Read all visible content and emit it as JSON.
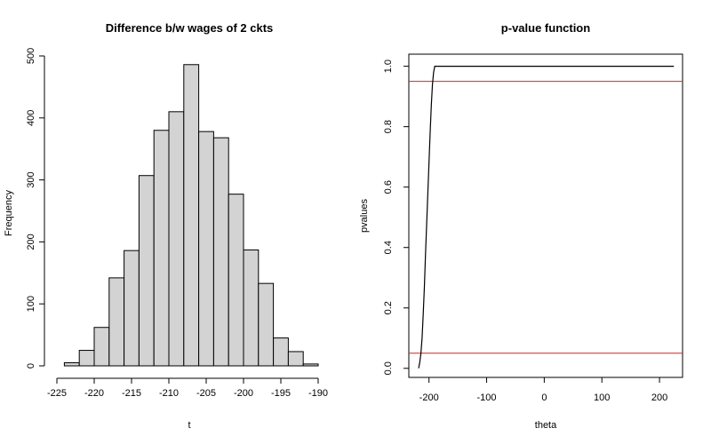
{
  "chart_data": [
    {
      "type": "bar",
      "title": "Difference b/w wages of 2 ckts",
      "xlabel": "t",
      "ylabel": "Frequency",
      "bin_edges": [
        -224,
        -222,
        -220,
        -218,
        -216,
        -214,
        -212,
        -210,
        -208,
        -206,
        -204,
        -202,
        -200,
        -198,
        -196,
        -194,
        -192,
        -190
      ],
      "values": [
        5,
        25,
        62,
        142,
        186,
        307,
        380,
        410,
        486,
        378,
        368,
        277,
        187,
        133,
        45,
        23,
        3
      ],
      "xlim": [
        -225,
        -190
      ],
      "ylim": [
        0,
        500
      ],
      "x_ticks": [
        -225,
        -220,
        -215,
        -210,
        -205,
        -200,
        -195,
        -190
      ],
      "y_ticks": [
        0,
        100,
        200,
        300,
        400,
        500
      ],
      "bar_color": "#d3d3d3",
      "grid": false
    },
    {
      "type": "line",
      "title": "p-value function",
      "xlabel": "theta",
      "ylabel": "pvalues",
      "series": [
        {
          "x": [
            -218,
            -216,
            -214,
            -212,
            -210,
            -208,
            -206,
            -204,
            -202,
            -200,
            -198,
            -196,
            -194,
            -192,
            -190,
            -185,
            -180,
            -150,
            -100,
            -50,
            0,
            50,
            100,
            150,
            200,
            225
          ],
          "y": [
            0.0,
            0.02,
            0.05,
            0.1,
            0.18,
            0.27,
            0.38,
            0.48,
            0.58,
            0.68,
            0.78,
            0.87,
            0.94,
            0.98,
            1.0,
            1.0,
            1.0,
            1.0,
            1.0,
            1.0,
            1.0,
            1.0,
            1.0,
            1.0,
            1.0,
            1.0
          ],
          "color": "#000000"
        }
      ],
      "hlines": [
        {
          "y": 0.95,
          "color": "#cd2626"
        },
        {
          "y": 0.05,
          "color": "#cd2626"
        }
      ],
      "xlim": [
        -235,
        240
      ],
      "ylim": [
        -0.03,
        1.04
      ],
      "x_ticks": [
        -200,
        -100,
        0,
        100,
        200
      ],
      "y_ticks": [
        0.0,
        0.2,
        0.4,
        0.6,
        0.8,
        1.0
      ],
      "y_tick_labels": [
        "0.0",
        "0.2",
        "0.4",
        "0.6",
        "0.8",
        "1.0"
      ],
      "grid": false
    }
  ]
}
